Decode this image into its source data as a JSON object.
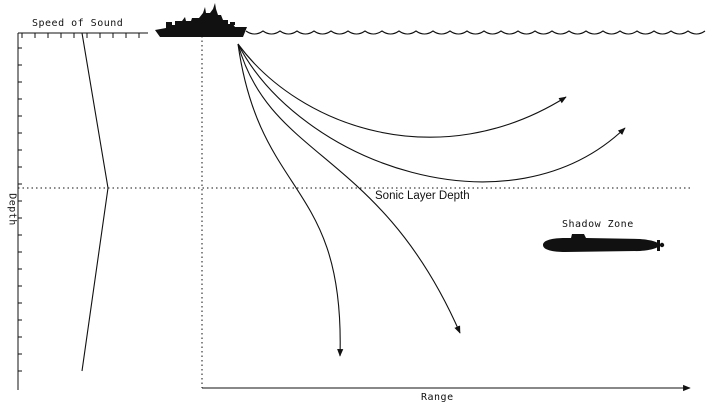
{
  "labels": {
    "speed_of_sound": "Speed of Sound",
    "depth": "Depth",
    "range": "Range",
    "sonic_layer_depth": "Sonic Layer Depth",
    "shadow_zone": "Shadow Zone"
  },
  "colors": {
    "ink": "#111111",
    "background": "#ffffff"
  },
  "icons": {
    "ship": "warship-silhouette-icon",
    "submarine": "submarine-silhouette-icon"
  }
}
